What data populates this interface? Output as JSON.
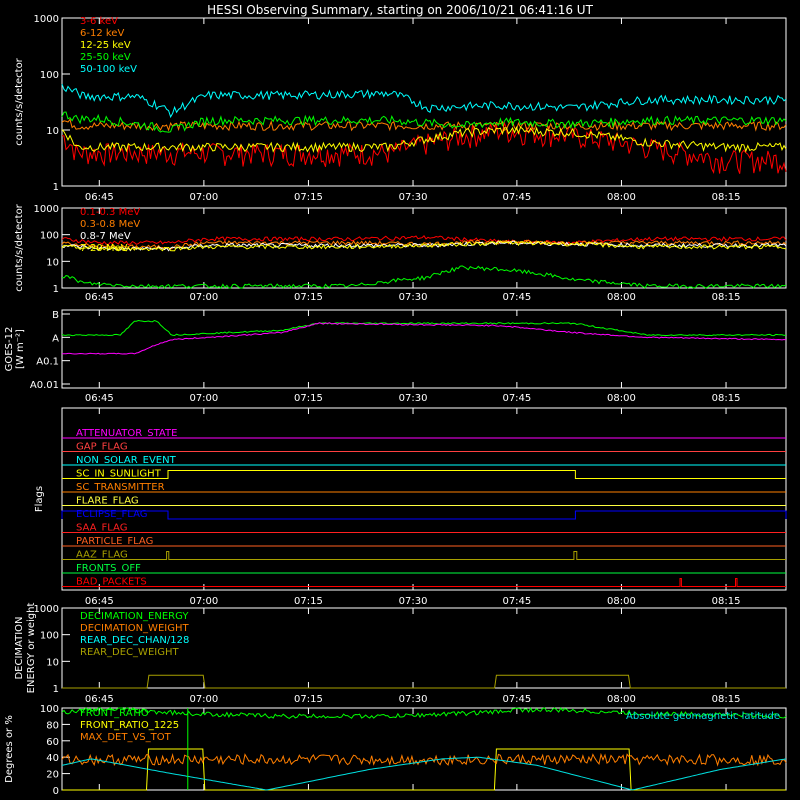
{
  "title": "HESSI Observing Summary, starting on 2006/10/21 06:41:16 UT",
  "time_ticks": [
    "06:45",
    "07:00",
    "07:15",
    "07:30",
    "07:45",
    "08:00",
    "08:15"
  ],
  "colors": {
    "red": "#ff0000",
    "orange": "#ff7f00",
    "yellow": "#ffff00",
    "green": "#00ff00",
    "cyan": "#00ffff",
    "magenta": "#ff00ff",
    "blue": "#0000ff",
    "olive": "#a8a000",
    "lightgreen": "#00e060",
    "gray": "#808080"
  },
  "chart_data": [
    {
      "type": "line",
      "id": "low-energy",
      "ylabel": "counts/s/detector",
      "yscale": "log",
      "ylim": [
        1,
        1000
      ],
      "yticks": [
        "1",
        "10",
        "100",
        "1000"
      ],
      "xlim_min": [
        0,
        99
      ],
      "series": [
        {
          "name": "3-6 keV",
          "color": "#ff0000",
          "x": [
            0,
            2,
            5,
            15,
            30,
            45,
            55,
            60,
            70,
            80,
            90,
            99
          ],
          "y": [
            8,
            4,
            4,
            4,
            4,
            4,
            8,
            10,
            8,
            5,
            3,
            3
          ]
        },
        {
          "name": "6-12 keV",
          "color": "#ff7f00",
          "x": [
            0,
            2,
            5,
            15,
            30,
            45,
            55,
            60,
            70,
            80,
            90,
            99
          ],
          "y": [
            15,
            12,
            12,
            12,
            12,
            12,
            12,
            12,
            12,
            12,
            12,
            12
          ]
        },
        {
          "name": "12-25 keV",
          "color": "#ffff00",
          "x": [
            0,
            2,
            5,
            15,
            30,
            45,
            55,
            60,
            70,
            80,
            90,
            99
          ],
          "y": [
            10,
            5,
            5,
            5,
            5,
            5,
            9,
            10,
            9,
            6,
            5,
            5
          ]
        },
        {
          "name": "25-50 keV",
          "color": "#00ff00",
          "x": [
            0,
            2,
            5,
            15,
            20,
            30,
            45,
            55,
            60,
            70,
            80,
            90,
            99
          ],
          "y": [
            20,
            16,
            16,
            10,
            15,
            15,
            15,
            12,
            14,
            13,
            15,
            15,
            15
          ]
        },
        {
          "name": "50-100 keV",
          "color": "#00ffff",
          "x": [
            0,
            3,
            10,
            15,
            20,
            30,
            45,
            50,
            60,
            70,
            80,
            90,
            99
          ],
          "y": [
            60,
            40,
            40,
            20,
            42,
            42,
            45,
            25,
            28,
            25,
            35,
            35,
            35
          ]
        }
      ]
    },
    {
      "type": "line",
      "id": "high-energy",
      "ylabel": "counts/s/detector",
      "yscale": "log",
      "ylim": [
        1,
        1000
      ],
      "yticks": [
        "1",
        "10",
        "100",
        "1000"
      ],
      "series": [
        {
          "name": "0.1-0.3 MeV",
          "color": "#ff0000",
          "x": [
            0,
            5,
            15,
            20,
            40,
            50,
            60,
            70,
            80,
            90,
            99
          ],
          "y": [
            70,
            50,
            50,
            70,
            70,
            80,
            55,
            50,
            70,
            70,
            70
          ]
        },
        {
          "name": "0.3-0.8 MeV",
          "color": "#ff7f00",
          "x": [
            0,
            5,
            15,
            20,
            40,
            50,
            60,
            70,
            80,
            90,
            99
          ],
          "y": [
            50,
            35,
            35,
            50,
            50,
            45,
            55,
            50,
            50,
            50,
            50
          ]
        },
        {
          "name": "0.8-7 MeV",
          "color": "#ffffff",
          "x": [
            0,
            5,
            15,
            20,
            40,
            50,
            60,
            70,
            80,
            90,
            99
          ],
          "y": [
            40,
            30,
            30,
            40,
            40,
            40,
            50,
            45,
            40,
            40,
            40
          ]
        },
        {
          "name": "7-20 MeV",
          "color": "#ffff00",
          "x": [
            0,
            5,
            15,
            20,
            40,
            50,
            60,
            70,
            80,
            90,
            99
          ],
          "y": [
            35,
            30,
            30,
            35,
            35,
            40,
            50,
            45,
            35,
            35,
            35
          ]
        },
        {
          "name": "",
          "color": "#00ff00",
          "x": [
            0,
            3,
            10,
            40,
            50,
            55,
            60,
            70,
            80,
            90,
            99
          ],
          "y": [
            3,
            1.5,
            1.2,
            1.2,
            2.5,
            6,
            5,
            2,
            1.2,
            1.2,
            1.2
          ]
        }
      ]
    },
    {
      "type": "line",
      "id": "goes",
      "ylabel": "GOES-12",
      "ylabel2": "[W m⁻²]",
      "yscale": "log",
      "yticks": [
        "A0.01",
        "A0.1",
        "A",
        "B"
      ],
      "series": [
        {
          "name": "",
          "color": "#00ff00",
          "x": [
            0,
            8,
            10,
            13,
            15,
            30,
            35,
            60,
            70,
            80,
            99
          ],
          "y": [
            2.6,
            2.6,
            3.2,
            3.2,
            2.6,
            2.8,
            3.1,
            3.1,
            3.1,
            2.6,
            2.6
          ]
        },
        {
          "name": "",
          "color": "#ff00ff",
          "x": [
            0,
            10,
            13,
            15,
            30,
            35,
            60,
            70,
            80,
            99
          ],
          "y": [
            1.8,
            1.8,
            2.2,
            2.4,
            2.7,
            3.1,
            3.0,
            2.7,
            2.5,
            2.4
          ]
        }
      ]
    },
    {
      "type": "line",
      "id": "flags",
      "ylabel": "Flags",
      "flags": [
        {
          "name": "ATTENUATOR_STATE",
          "color": "#ff00ff",
          "on": []
        },
        {
          "name": "GAP_FLAG",
          "color": "#ff4040",
          "on": []
        },
        {
          "name": "NON_SOLAR_EVENT",
          "color": "#00ffff",
          "on": []
        },
        {
          "name": "SC_IN_SUNLIGHT",
          "color": "#ffff00",
          "on": [
            [
              14.5,
              70.2
            ]
          ]
        },
        {
          "name": "SC_TRANSMITTER",
          "color": "#ff7f00",
          "on": []
        },
        {
          "name": "FLARE_FLAG",
          "color": "#ffff40",
          "on": []
        },
        {
          "name": "ECLIPSE_FLAG",
          "color": "#0000ff",
          "on": [
            [
              0,
              14.5
            ],
            [
              70.2,
              99
            ]
          ]
        },
        {
          "name": "SAA_FLAG",
          "color": "#ff2020",
          "on": []
        },
        {
          "name": "PARTICLE_FLAG",
          "color": "#ff6020",
          "on": []
        },
        {
          "name": "AAZ_FLAG",
          "color": "#a8a000",
          "on": [
            [
              14.3,
              14.6
            ],
            [
              70.0,
              70.4
            ]
          ]
        },
        {
          "name": "FRONTS_OFF",
          "color": "#00ff40",
          "on": []
        },
        {
          "name": "BAD_PACKETS",
          "color": "#ff0000",
          "on": [
            [
              84.5,
              84.7
            ],
            [
              92.1,
              92.3
            ]
          ]
        }
      ]
    },
    {
      "type": "line",
      "id": "decimation",
      "ylabel": "DECIMATION",
      "ylabel2": "ENERGY or weight",
      "yscale": "log",
      "ylim": [
        1,
        1000
      ],
      "yticks": [
        "1",
        "10",
        "100",
        "1000"
      ],
      "series": [
        {
          "name": "DECIMATION_ENERGY",
          "color": "#00ff00",
          "x": [],
          "y": []
        },
        {
          "name": "DECIMATION_WEIGHT",
          "color": "#ff7f00",
          "x": [],
          "y": []
        },
        {
          "name": "REAR_DEC_CHAN/128",
          "color": "#00ffff",
          "x": [],
          "y": []
        },
        {
          "name": "REAR_DEC_WEIGHT",
          "color": "#a8a000",
          "x": [
            0,
            11.8,
            11.8,
            19.5,
            19.5,
            59.2,
            59.2,
            77.6,
            77.6,
            99
          ],
          "y": [
            1,
            1,
            3,
            3,
            1,
            1,
            3,
            3,
            1,
            1
          ]
        }
      ]
    },
    {
      "type": "line",
      "id": "ratios",
      "ylabel": "Degrees or %",
      "ylim": [
        0,
        100
      ],
      "yticks": [
        "0",
        "20",
        "40",
        "60",
        "80",
        "100"
      ],
      "annotation": "Absolute geomagnetic latitude",
      "series": [
        {
          "name": "FRONT_RATIO",
          "color": "#00ff00",
          "x": [
            0,
            6,
            10,
            18,
            30,
            45,
            59,
            62,
            70,
            80,
            90,
            99
          ],
          "y": [
            95,
            100,
            97,
            93,
            90,
            90,
            95,
            98,
            97,
            93,
            92,
            90
          ]
        },
        {
          "name": "FRONT_RATIO_1225",
          "color": "#ffff00",
          "x": [
            0,
            11.8,
            11.8,
            19.5,
            19.5,
            59.2,
            59.2,
            77.6,
            77.6,
            99
          ],
          "y": [
            0,
            0,
            50,
            50,
            0,
            0,
            50,
            50,
            0,
            0
          ]
        },
        {
          "name": "MAX_DET_VS_TOT",
          "color": "#ff7f00",
          "x": [
            0,
            20,
            40,
            60,
            80,
            99
          ],
          "y": [
            37,
            37,
            37,
            37,
            37,
            37
          ]
        },
        {
          "name": "",
          "color": "#00e0e0",
          "x": [
            0,
            4,
            15,
            28,
            42,
            52,
            57,
            65,
            78,
            90,
            99
          ],
          "y": [
            30,
            38,
            20,
            0,
            25,
            38,
            40,
            30,
            0,
            25,
            38
          ]
        }
      ]
    }
  ]
}
